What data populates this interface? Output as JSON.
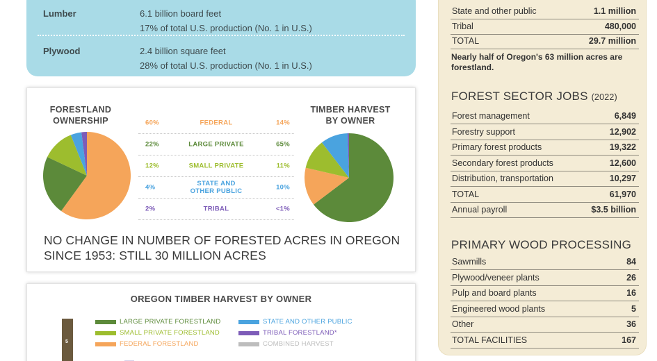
{
  "production": [
    {
      "name": "Lumber",
      "line1": "6.1 billion board feet",
      "line2": "17% of total U.S. production (No. 1 in U.S.)"
    },
    {
      "name": "Plywood",
      "line1": "2.4 billion square feet",
      "line2": "28% of total U.S. production (No. 1 in U.S.)"
    }
  ],
  "pie_titles": {
    "left": [
      "FORESTLAND",
      "OWNERSHIP"
    ],
    "right": [
      "TIMBER HARVEST",
      "BY OWNER"
    ]
  },
  "ownership_table": [
    {
      "left": "60%",
      "label": [
        "FEDERAL"
      ],
      "right": "14%",
      "color": "#f5a55a"
    },
    {
      "left": "22%",
      "label": [
        "LARGE PRIVATE"
      ],
      "right": "65%",
      "color": "#5c8a3a"
    },
    {
      "left": "12%",
      "label": [
        "SMALL PRIVATE"
      ],
      "right": "11%",
      "color": "#9dbd2e"
    },
    {
      "left": "4%",
      "label": [
        "STATE AND",
        "OTHER PUBLIC"
      ],
      "right": "10%",
      "color": "#4aa3df"
    },
    {
      "left": "2%",
      "label": [
        "TRIBAL"
      ],
      "right": "<1%",
      "color": "#7d5cb8"
    }
  ],
  "forest_note": [
    "NO CHANGE IN NUMBER OF FORESTED ACRES IN OREGON",
    "SINCE 1953: STILL 30 MILLION ACRES"
  ],
  "chart_data": [
    {
      "type": "pie",
      "title": "FORESTLAND OWNERSHIP",
      "categories": [
        "FEDERAL",
        "LARGE PRIVATE",
        "SMALL PRIVATE",
        "STATE AND OTHER PUBLIC",
        "TRIBAL"
      ],
      "values": [
        60,
        22,
        12,
        4,
        2
      ],
      "colors": [
        "#f5a55a",
        "#5c8a3a",
        "#9dbd2e",
        "#4aa3df",
        "#7d5cb8"
      ]
    },
    {
      "type": "pie",
      "title": "TIMBER HARVEST BY OWNER",
      "categories": [
        "LARGE PRIVATE",
        "FEDERAL",
        "SMALL PRIVATE",
        "STATE AND OTHER PUBLIC",
        "TRIBAL"
      ],
      "values": [
        65,
        14,
        11,
        10,
        0.5
      ],
      "colors": [
        "#5c8a3a",
        "#f5a55a",
        "#9dbd2e",
        "#4aa3df",
        "#7d5cb8"
      ]
    },
    {
      "type": "bar",
      "title": "OREGON TIMBER HARVEST BY OWNER",
      "series": [
        {
          "name": "LARGE PRIVATE FORESTLAND",
          "color": "#5c8a3a"
        },
        {
          "name": "SMALL PRIVATE FORESTLAND",
          "color": "#9dbd2e"
        },
        {
          "name": "FEDERAL FORESTLAND",
          "color": "#f5a55a"
        },
        {
          "name": "STATE AND OTHER PUBLIC",
          "color": "#4aa3df"
        },
        {
          "name": "TRIBAL FORESTLAND*",
          "color": "#7d5cb8"
        },
        {
          "name": "COMBINED HARVEST",
          "color": "#bdbdbd"
        }
      ],
      "axis_tick": "5"
    }
  ],
  "side": {
    "land_rows": [
      {
        "label": "State and other public",
        "value": "1.1 million"
      },
      {
        "label": "Tribal",
        "value": "480,000"
      },
      {
        "label": "TOTAL",
        "value": "29.7 million"
      }
    ],
    "land_note": "Nearly half of Oregon's 63 million acres are forestland.",
    "jobs_title": "FOREST SECTOR JOBS",
    "jobs_year": "(2022)",
    "jobs_rows": [
      {
        "label": "Forest management",
        "value": "6,849"
      },
      {
        "label": "Forestry support",
        "value": "12,902"
      },
      {
        "label": "Primary forest products",
        "value": "19,322"
      },
      {
        "label": "Secondary forest products",
        "value": "12,600"
      },
      {
        "label": "Distribution, transportation",
        "value": "10,297"
      },
      {
        "label": "TOTAL",
        "value": "61,970"
      },
      {
        "label": "Annual payroll",
        "value": "$3.5 billion"
      }
    ],
    "proc_title": "PRIMARY WOOD PROCESSING",
    "proc_rows": [
      {
        "label": "Sawmills",
        "value": "84"
      },
      {
        "label": "Plywood/veneer plants",
        "value": "26"
      },
      {
        "label": "Pulp and board plants",
        "value": "16"
      },
      {
        "label": "Engineered wood plants",
        "value": "5"
      },
      {
        "label": "Other",
        "value": "36"
      },
      {
        "label": "TOTAL FACILITIES",
        "value": "167"
      }
    ]
  }
}
